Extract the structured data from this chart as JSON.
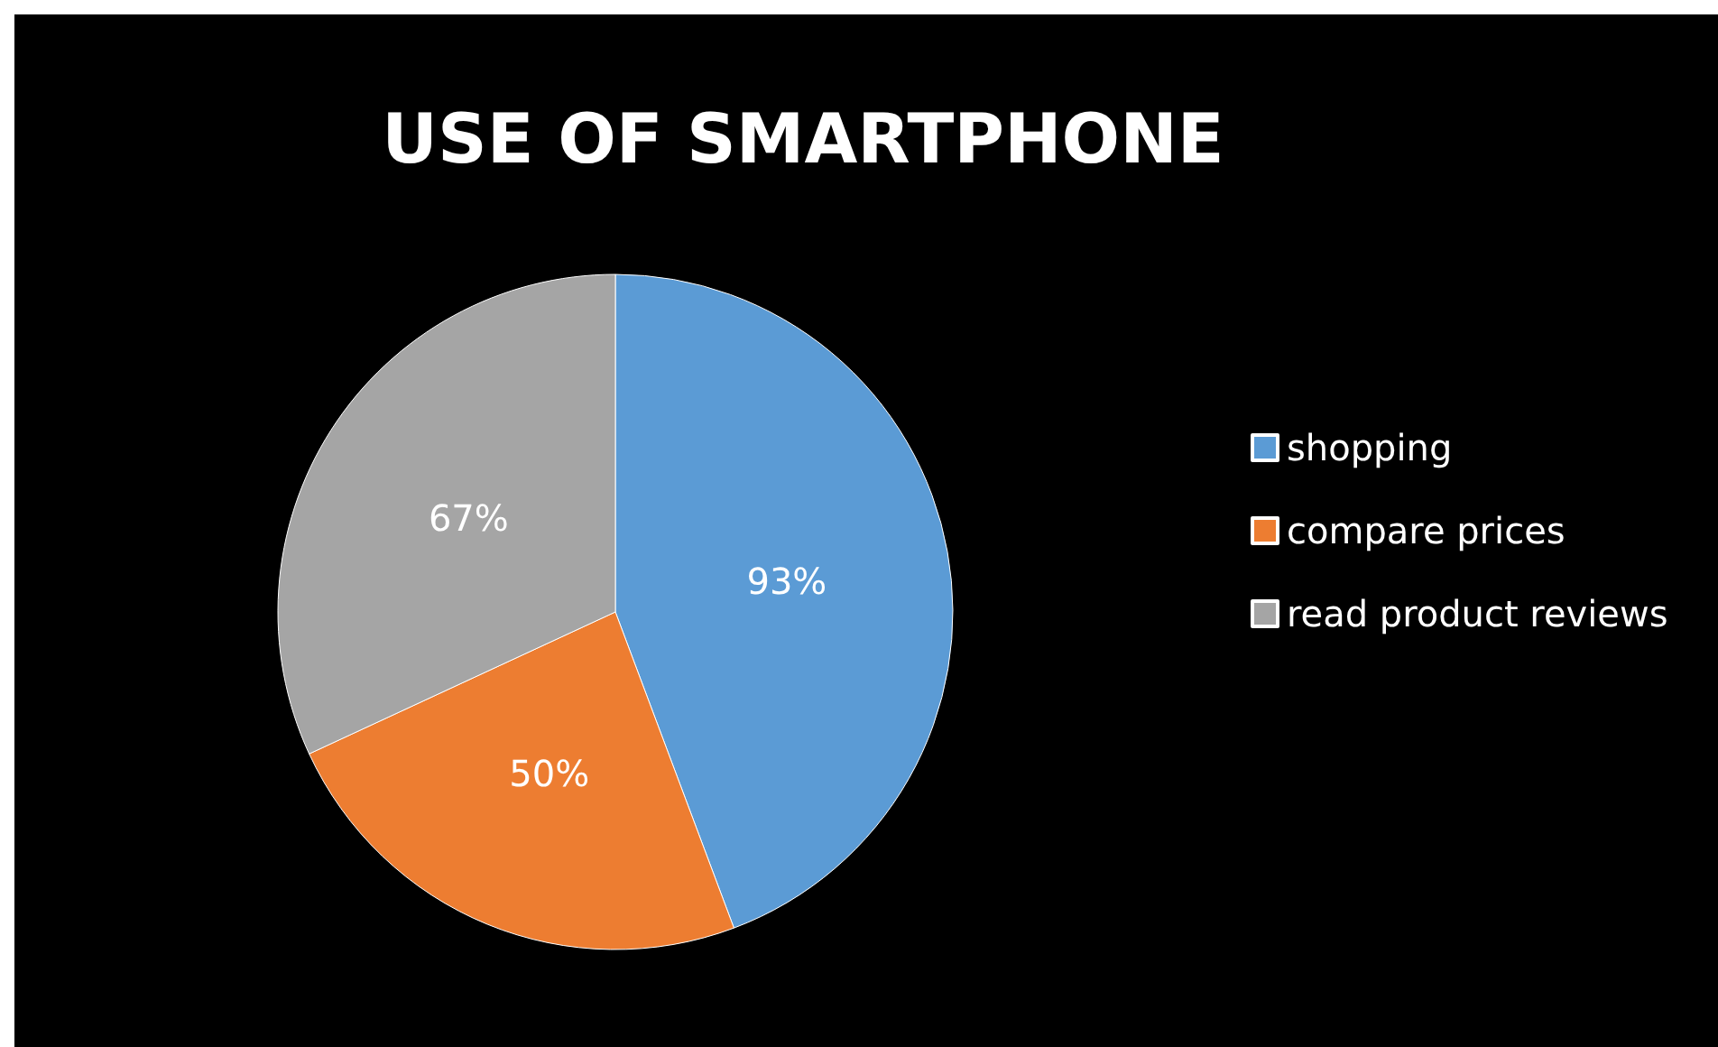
{
  "chart_data": {
    "type": "pie",
    "title": "USE OF SMARTPHONE",
    "categories": [
      "shopping",
      "compare prices",
      "read product reviews"
    ],
    "values": [
      93,
      50,
      67
    ],
    "value_labels": [
      "93%",
      "50%",
      "67%"
    ],
    "colors": [
      "#5b9bd5",
      "#ed7d31",
      "#a5a5a5"
    ],
    "legend": "right"
  }
}
